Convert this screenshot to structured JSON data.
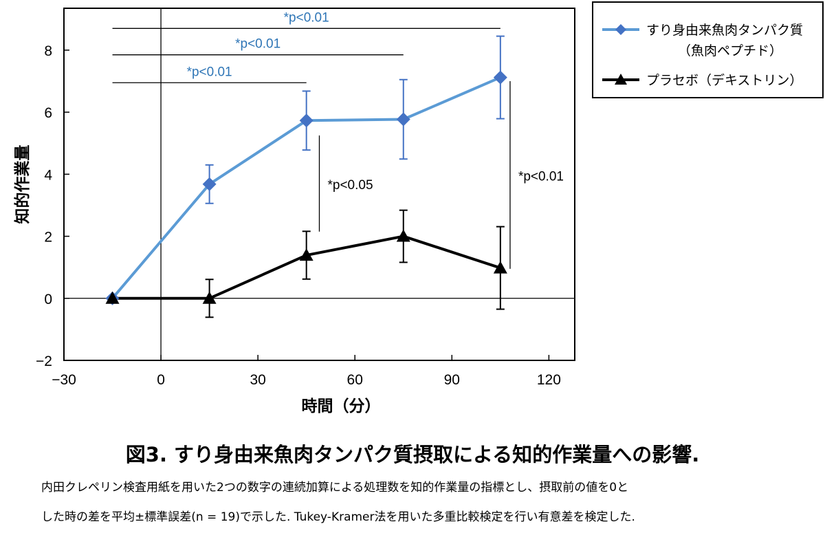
{
  "chart_data": {
    "type": "line",
    "title": "",
    "xlabel": "時間（分）",
    "ylabel": "知的作業量",
    "xlim": [
      -30,
      128
    ],
    "ylim": [
      -2,
      9.35
    ],
    "xticks": [
      -30,
      0,
      30,
      60,
      90,
      120
    ],
    "yticks": [
      -2,
      0,
      2,
      4,
      6,
      8
    ],
    "xtick_labels": [
      "−30",
      "0",
      "30",
      "60",
      "90",
      "120"
    ],
    "ytick_labels": [
      "−2",
      "0",
      "2",
      "4",
      "6",
      "8"
    ],
    "x": [
      -15,
      15,
      45,
      75,
      105
    ],
    "series": [
      {
        "name": "すり身由来魚肉タンパク質",
        "name_line2": "（魚肉ペプチド）",
        "color": "#5b9bd5",
        "marker_color": "#4472c4",
        "marker": "diamond",
        "values": [
          0,
          3.68,
          5.73,
          5.77,
          7.12
        ],
        "errors": [
          0,
          0.62,
          0.95,
          1.28,
          1.33
        ]
      },
      {
        "name": "プラセボ（デキストリン）",
        "color": "#000000",
        "marker_color": "#000000",
        "marker": "triangle",
        "values": [
          0,
          0,
          1.39,
          2.0,
          0.98
        ],
        "errors": [
          0,
          0.61,
          0.77,
          0.84,
          1.33
        ]
      }
    ],
    "legend_position": "top-right-outside",
    "annotations": [
      {
        "text": "*p<0.01",
        "color": "#2e75b6",
        "type": "hbracket",
        "from": -15,
        "to": 45,
        "y": 6.95
      },
      {
        "text": "*p<0.01",
        "color": "#2e75b6",
        "type": "hbracket",
        "from": -15,
        "to": 75,
        "y": 7.85
      },
      {
        "text": "*p<0.01",
        "color": "#2e75b6",
        "type": "hbracket",
        "from": -15,
        "to": 105,
        "y": 8.7
      },
      {
        "text": "*p<0.05",
        "color": "#000000",
        "type": "vbracket",
        "x": 49,
        "from": 2.15,
        "to": 5.25
      },
      {
        "text": "*p<0.01",
        "color": "#000000",
        "type": "vbracket",
        "x": 108,
        "from": 0.95,
        "to": 7.0
      }
    ]
  },
  "caption": {
    "title": "図3. すり身由来魚肉タンパク質摂取による知的作業量への影響.",
    "line1": "内田クレペリン検査用紙を用いた2つの数字の連続加算による処理数を知的作業量の指標とし、摂取前の値を0と",
    "line2": "した時の差を平均±標準誤差(n = 19)で示した. Tukey-Kramer法を用いた多重比較検定を行い有意差を検定した."
  }
}
